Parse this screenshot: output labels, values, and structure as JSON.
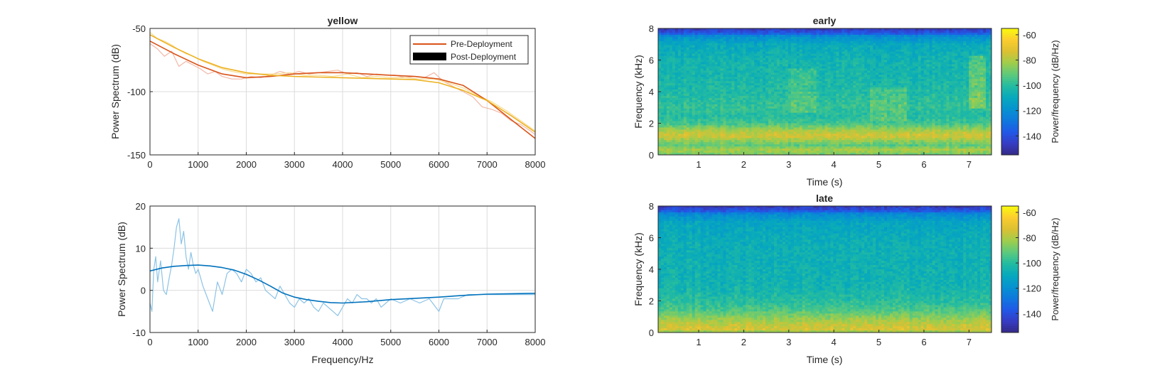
{
  "chart_data": [
    {
      "id": "top-left",
      "type": "line",
      "title": "yellow",
      "xlabel": "",
      "ylabel": "Power Spectrum (dB)",
      "xlim": [
        0,
        8000
      ],
      "ylim": [
        -150,
        -50
      ],
      "xticks": [
        0,
        1000,
        2000,
        3000,
        4000,
        5000,
        6000,
        7000,
        8000
      ],
      "yticks": [
        -150,
        -100,
        -50
      ],
      "grid": true,
      "legend": {
        "location": "top-right",
        "entries": [
          "Pre-Deployment",
          "Post-Deployment"
        ]
      },
      "colors": {
        "pre": "#d95319",
        "pre_raw": "#f2b8a6",
        "post": "#edb120",
        "post_raw": "#f7dc93"
      },
      "series": [
        {
          "name": "Pre-Deployment",
          "role": "fit",
          "x": [
            0,
            500,
            1000,
            1500,
            2000,
            2500,
            3000,
            3500,
            4000,
            4500,
            5000,
            5500,
            6000,
            6500,
            7000,
            7500,
            8000
          ],
          "y": [
            -60,
            -70,
            -79,
            -86,
            -89,
            -88,
            -86,
            -85,
            -85,
            -86,
            -87,
            -88,
            -90,
            -95,
            -107,
            -122,
            -137
          ]
        },
        {
          "name": "Pre-Deployment (raw)",
          "role": "raw",
          "x": [
            0,
            150,
            300,
            450,
            600,
            750,
            900,
            1050,
            1200,
            1350,
            1500,
            1700,
            1900,
            2100,
            2300,
            2500,
            2700,
            2900,
            3100,
            3300,
            3500,
            3700,
            3900,
            4100,
            4300,
            4500,
            4700,
            4900,
            5100,
            5300,
            5500,
            5700,
            5900,
            6100,
            6300,
            6500,
            6700,
            6900,
            7100,
            7300,
            7500,
            7700,
            7900,
            8000
          ],
          "y": [
            -62,
            -66,
            -72,
            -68,
            -80,
            -76,
            -79,
            -82,
            -86,
            -84,
            -88,
            -90,
            -90,
            -88,
            -89,
            -87,
            -84,
            -86,
            -84,
            -86,
            -85,
            -84,
            -83,
            -86,
            -85,
            -88,
            -86,
            -87,
            -87,
            -89,
            -88,
            -89,
            -85,
            -92,
            -96,
            -100,
            -104,
            -112,
            -114,
            -117,
            -123,
            -126,
            -131,
            -134
          ]
        },
        {
          "name": "Post-Deployment",
          "role": "fit",
          "x": [
            0,
            500,
            1000,
            1500,
            2000,
            2500,
            3000,
            3500,
            4000,
            4500,
            5000,
            5500,
            6000,
            6500,
            7000,
            7500,
            8000
          ],
          "y": [
            -55,
            -65,
            -74,
            -81,
            -85,
            -87,
            -88,
            -88.5,
            -89,
            -89.5,
            -90,
            -90.5,
            -93,
            -99,
            -107,
            -119,
            -132
          ]
        },
        {
          "name": "Post-Deployment (raw)",
          "role": "raw",
          "x": [
            0,
            150,
            300,
            450,
            600,
            750,
            900,
            1100,
            1300,
            1500,
            1700,
            2000,
            2300,
            2600,
            2900,
            3200,
            3500,
            3800,
            4100,
            4400,
            4700,
            5000,
            5300,
            5600,
            5900,
            6200,
            6500,
            6800,
            7100,
            7400,
            7700,
            8000
          ],
          "y": [
            -53,
            -58,
            -60,
            -63,
            -67,
            -70,
            -72,
            -76,
            -79,
            -82,
            -84,
            -86,
            -86,
            -86,
            -85,
            -87,
            -87,
            -88,
            -86,
            -89,
            -88,
            -89,
            -89,
            -90,
            -90,
            -93,
            -97,
            -103,
            -108,
            -115,
            -123,
            -131
          ]
        }
      ]
    },
    {
      "id": "bottom-left",
      "type": "line",
      "title": "",
      "xlabel": "Frequency/Hz",
      "ylabel": "Power Spectrum (dB)",
      "xlim": [
        0,
        8000
      ],
      "ylim": [
        -10,
        20
      ],
      "xticks": [
        0,
        1000,
        2000,
        3000,
        4000,
        5000,
        6000,
        7000,
        8000
      ],
      "yticks": [
        -10,
        0,
        10,
        20
      ],
      "grid": true,
      "colors": {
        "fit": "#0072bd",
        "raw": "#8cc3e6"
      },
      "series": [
        {
          "role": "fit",
          "x": [
            0,
            250,
            500,
            750,
            1000,
            1250,
            1500,
            1750,
            2000,
            2250,
            2500,
            2750,
            3000,
            3250,
            3500,
            3750,
            4000,
            4500,
            5000,
            5500,
            6000,
            6500,
            7000,
            7500,
            8000
          ],
          "y": [
            4.6,
            5.3,
            5.7,
            5.9,
            6.0,
            5.8,
            5.4,
            4.8,
            3.8,
            2.5,
            1.0,
            -0.6,
            -1.6,
            -2.2,
            -2.6,
            -2.9,
            -3.0,
            -2.7,
            -2.2,
            -1.9,
            -1.6,
            -1.2,
            -0.9,
            -0.8,
            -0.7
          ]
        },
        {
          "role": "raw",
          "x": [
            0,
            40,
            80,
            120,
            160,
            220,
            280,
            340,
            400,
            450,
            500,
            550,
            600,
            650,
            700,
            750,
            800,
            850,
            900,
            950,
            1000,
            1100,
            1200,
            1300,
            1400,
            1500,
            1600,
            1700,
            1800,
            1900,
            2000,
            2100,
            2200,
            2300,
            2400,
            2500,
            2600,
            2700,
            2800,
            2900,
            3000,
            3100,
            3200,
            3300,
            3400,
            3500,
            3600,
            3700,
            3800,
            3900,
            4000,
            4100,
            4200,
            4300,
            4400,
            4500,
            4600,
            4700,
            4800,
            4900,
            5000,
            5200,
            5400,
            5600,
            5800,
            6000,
            6100,
            6200,
            6400,
            6600,
            6800,
            7000,
            7200,
            7400,
            7600,
            7800,
            8000
          ],
          "y": [
            -3,
            -5,
            5,
            8,
            2,
            7,
            0,
            -1,
            3,
            6,
            10,
            15,
            17,
            11,
            14,
            8,
            5,
            9,
            6,
            4,
            5,
            1,
            -2,
            -5,
            2,
            -1,
            4,
            5,
            4,
            2,
            5,
            4,
            2,
            3,
            0,
            -1,
            -2,
            1,
            -1,
            -3,
            -4,
            -2,
            -3,
            -2,
            -4,
            -5,
            -3,
            -4,
            -5,
            -6,
            -4,
            -2,
            -3,
            -1,
            -2,
            -2,
            -3,
            -2,
            -4,
            -3,
            -2,
            -3,
            -2,
            -3,
            -2,
            -5,
            -2,
            -2,
            -2,
            -1,
            -1,
            -1,
            -1,
            -1,
            -1,
            -1,
            -1
          ]
        }
      ]
    },
    {
      "id": "top-right",
      "type": "heatmap",
      "title": "early",
      "xlabel": "Time (s)",
      "ylabel": "Frequency (kHz)",
      "xlim": [
        0.1,
        7.5
      ],
      "ylim": [
        0,
        8
      ],
      "xticks": [
        1,
        2,
        3,
        4,
        5,
        6,
        7
      ],
      "yticks": [
        0,
        2,
        4,
        6,
        8
      ],
      "colorbar": {
        "label": "Power/frequency (dB/Hz)",
        "ticks": [
          -60,
          -80,
          -100,
          -120,
          -140
        ],
        "clim": [
          -155,
          -55
        ],
        "colormap": "parula"
      },
      "profile_khz": [
        0,
        0.3,
        0.6,
        0.9,
        1.2,
        1.5,
        2,
        2.5,
        3,
        4,
        5,
        6,
        7,
        7.5,
        7.7,
        8
      ],
      "profile_db": [
        -90,
        -80,
        -92,
        -84,
        -74,
        -80,
        -96,
        -101,
        -98,
        -102,
        -104,
        -105,
        -110,
        -120,
        -138,
        -148
      ],
      "features": [
        {
          "t": [
            3.0,
            3.6
          ],
          "f": [
            2.6,
            5.5
          ],
          "db": 9
        },
        {
          "t": [
            4.8,
            5.6
          ],
          "f": [
            2.2,
            4.2
          ],
          "db": 10
        },
        {
          "t": [
            7.0,
            7.4
          ],
          "f": [
            3.0,
            6.2
          ],
          "db": 16
        }
      ]
    },
    {
      "id": "bottom-right",
      "type": "heatmap",
      "title": "late",
      "xlabel": "Time (s)",
      "ylabel": "Frequency (kHz)",
      "xlim": [
        0.1,
        7.5
      ],
      "ylim": [
        0,
        8
      ],
      "xticks": [
        1,
        2,
        3,
        4,
        5,
        6,
        7
      ],
      "yticks": [
        0,
        2,
        4,
        6,
        8
      ],
      "colorbar": {
        "label": "Power/frequency (dB/Hz)",
        "ticks": [
          -60,
          -80,
          -100,
          -120,
          -140
        ],
        "clim": [
          -155,
          -55
        ],
        "colormap": "parula"
      },
      "profile_khz": [
        0,
        0.2,
        0.5,
        0.8,
        1.1,
        1.5,
        2,
        2.5,
        3,
        4,
        5,
        6,
        7,
        7.5,
        7.7,
        8
      ],
      "profile_db": [
        -86,
        -74,
        -77,
        -82,
        -88,
        -95,
        -100,
        -103,
        -105,
        -106,
        -107,
        -108,
        -112,
        -122,
        -138,
        -148
      ],
      "features": []
    }
  ]
}
